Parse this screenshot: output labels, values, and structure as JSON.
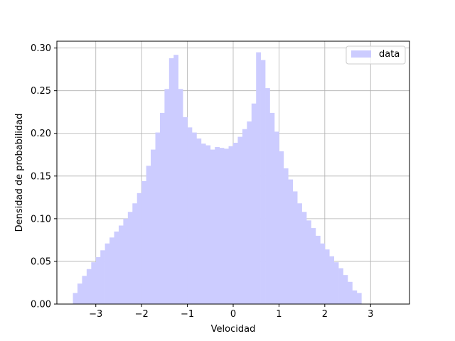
{
  "chart_data": {
    "type": "bar",
    "subtype": "histogram",
    "xlabel": "Velocidad",
    "ylabel": "Densidad de probabilidad",
    "xlim": [
      -3.85,
      3.85
    ],
    "ylim": [
      0.0,
      0.308
    ],
    "grid": true,
    "legend_placement": "top-right",
    "xticks": [
      -3,
      -2,
      -1,
      0,
      1,
      2,
      3
    ],
    "xtick_labels": [
      "−3",
      "−2",
      "−1",
      "0",
      "1",
      "2",
      "3"
    ],
    "yticks": [
      0.0,
      0.05,
      0.1,
      0.15,
      0.2,
      0.25,
      0.3
    ],
    "ytick_labels": [
      "0.00",
      "0.05",
      "0.10",
      "0.15",
      "0.20",
      "0.25",
      "0.30"
    ],
    "bin_start": -3.5,
    "bin_width": 0.1,
    "series": [
      {
        "name": "data",
        "color": "#ccccff",
        "values": [
          0.013,
          0.024,
          0.033,
          0.041,
          0.049,
          0.055,
          0.063,
          0.071,
          0.078,
          0.085,
          0.092,
          0.1,
          0.108,
          0.118,
          0.13,
          0.144,
          0.162,
          0.181,
          0.201,
          0.224,
          0.252,
          0.288,
          0.292,
          0.252,
          0.219,
          0.207,
          0.201,
          0.194,
          0.188,
          0.186,
          0.181,
          0.184,
          0.183,
          0.182,
          0.185,
          0.189,
          0.196,
          0.205,
          0.214,
          0.235,
          0.295,
          0.286,
          0.253,
          0.224,
          0.202,
          0.179,
          0.159,
          0.146,
          0.132,
          0.118,
          0.108,
          0.098,
          0.089,
          0.08,
          0.071,
          0.064,
          0.056,
          0.049,
          0.042,
          0.034,
          0.026,
          0.016,
          0.013
        ]
      }
    ]
  }
}
